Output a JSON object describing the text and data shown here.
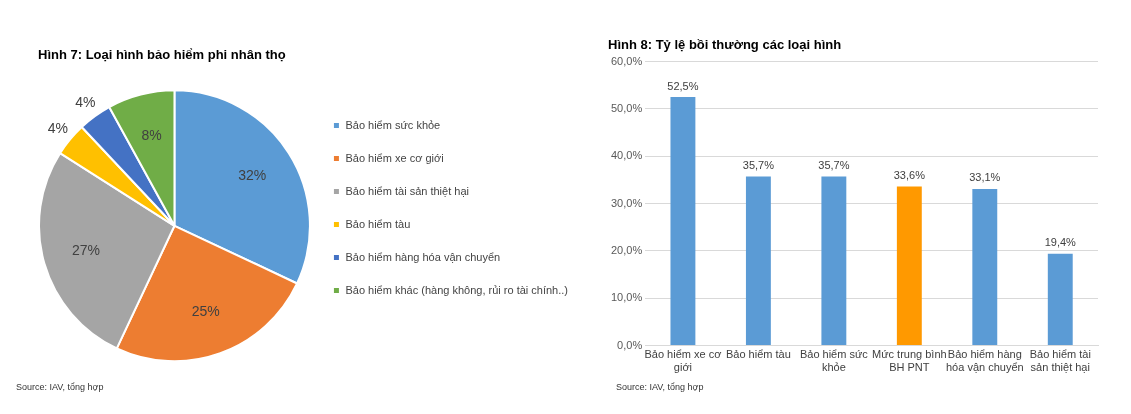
{
  "chart_data": [
    {
      "type": "pie",
      "title": "Hình 7: Loại hình bảo hiểm phi nhân thọ",
      "categories": [
        "Bảo hiểm sức khỏe",
        "Bảo hiểm xe cơ giới",
        "Bảo hiểm tài sản thiệt hại",
        "Bảo hiểm tàu",
        "Bảo hiểm hàng hóa vận chuyển",
        "Bảo hiểm khác (hàng không, rủi ro tài chính..)"
      ],
      "values": [
        32,
        25,
        27,
        4,
        4,
        8
      ],
      "colors": [
        "#5b9bd5",
        "#ed7d31",
        "#a5a5a5",
        "#ffc000",
        "#4472c4",
        "#70ad47"
      ],
      "value_labels": [
        "32%",
        "25%",
        "27%",
        "4%",
        "4%",
        "8%"
      ],
      "legend": "right",
      "annotations": [
        "Source: IAV, tổng hợp"
      ]
    },
    {
      "type": "bar",
      "title": "Hình 8: Tỷ lệ bồi thường các loại hình",
      "categories": [
        "Bảo hiểm xe cơ giới",
        "Bảo hiểm tàu",
        "Bảo hiểm sức khỏe",
        "Mức trung bình BH PNT",
        "Bảo hiểm hàng hóa vận chuyển",
        "Bảo hiểm tài sản thiệt hại"
      ],
      "values": [
        52.5,
        35.7,
        35.7,
        33.6,
        33.1,
        19.4
      ],
      "colors": [
        "#5b9bd5",
        "#5b9bd5",
        "#5b9bd5",
        "#ff9900",
        "#5b9bd5",
        "#5b9bd5"
      ],
      "value_labels": [
        "52,5%",
        "35,7%",
        "35,7%",
        "33,6%",
        "33,1%",
        "19,4%"
      ],
      "ylim": [
        0,
        60
      ],
      "yticks": [
        {
          "value": 0,
          "label": "0,0%"
        },
        {
          "value": 10,
          "label": "10,0%"
        },
        {
          "value": 20,
          "label": "20,0%"
        },
        {
          "value": 30,
          "label": "30,0%"
        },
        {
          "value": 40,
          "label": "40,0%"
        },
        {
          "value": 50,
          "label": "50,0%"
        },
        {
          "value": 60,
          "label": "60,0%"
        }
      ],
      "grid": "y",
      "legend": false,
      "annotations": [
        "Source: IAV, tổng hợp"
      ]
    }
  ]
}
